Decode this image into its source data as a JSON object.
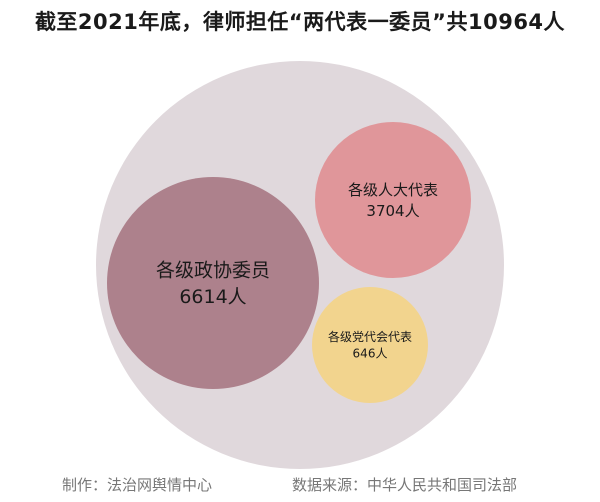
{
  "title": "截至2021年底，律师担任“两代表一委员”共10964人",
  "chart_data": {
    "type": "bubble",
    "title": "截至2021年底，律师担任“两代表一委员”共10964人",
    "total": {
      "value": 10964,
      "color": "#e0d8dc"
    },
    "bubbles": [
      {
        "name": "各级政协委员",
        "value": 6614,
        "label": "6614人",
        "color": "#ad818c"
      },
      {
        "name": "各级人大代表",
        "value": 3704,
        "label": "3704人",
        "color": "#e0969a"
      },
      {
        "name": "各级党代会代表",
        "value": 646,
        "label": "646人",
        "color": "#f2d48e"
      }
    ]
  },
  "footer": {
    "credit": "制作：法治网舆情中心",
    "source": "数据来源：中华人民共和国司法部"
  }
}
